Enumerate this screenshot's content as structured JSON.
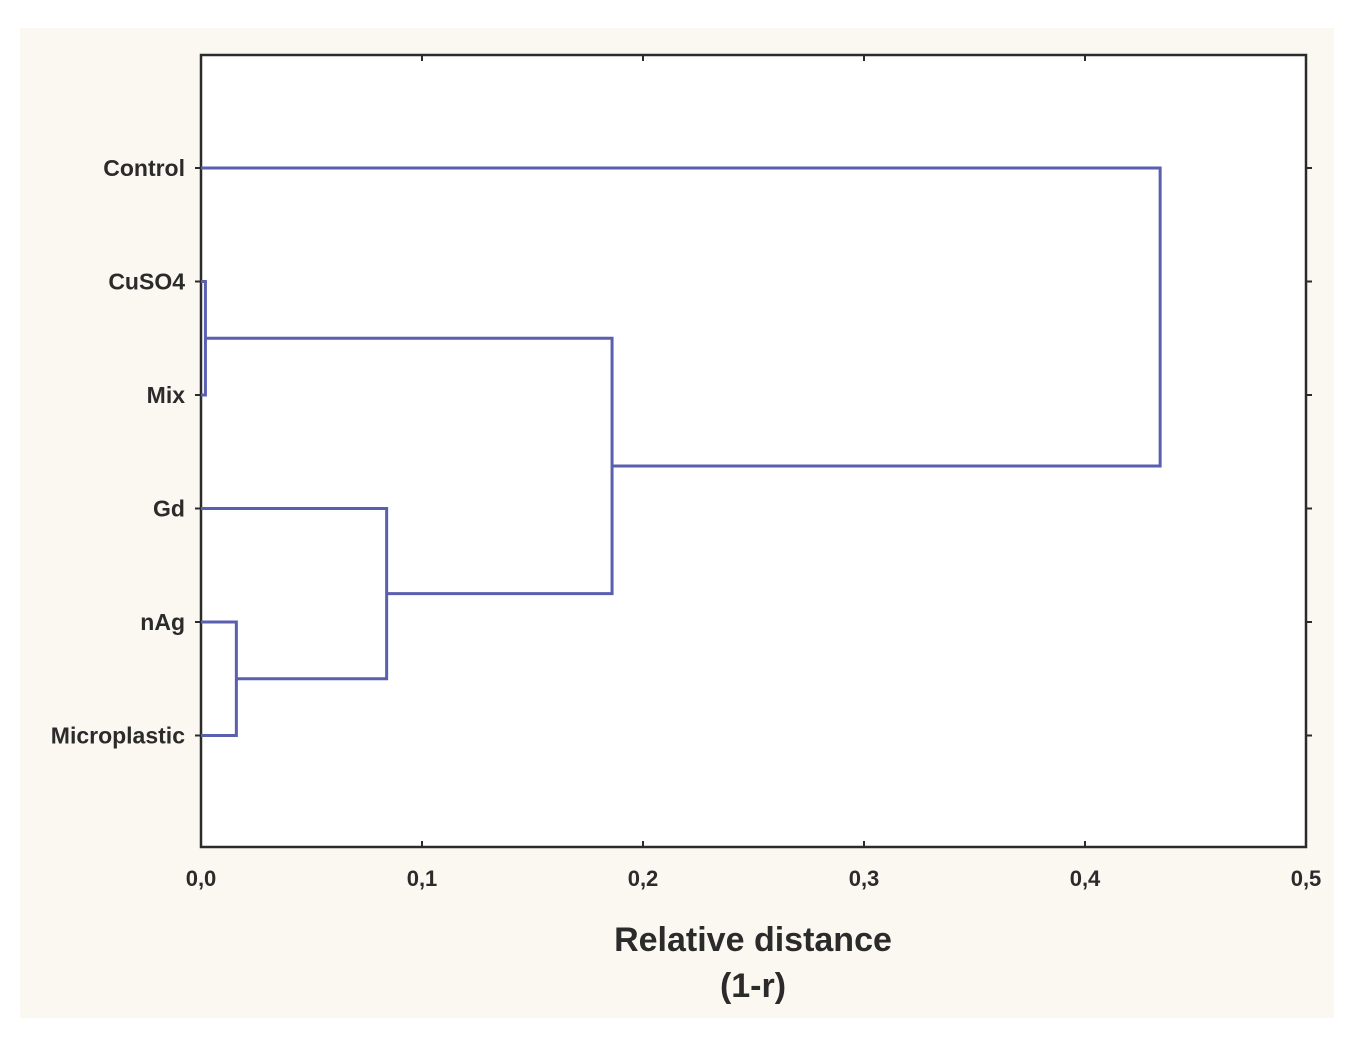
{
  "chart_data": {
    "type": "dendrogram",
    "orientation": "horizontal",
    "xlabel": "Relative distance",
    "xlabel_sub": "(1-r)",
    "xlim": [
      0.0,
      0.5
    ],
    "x_ticks": [
      {
        "value": 0.0,
        "label": "0,0"
      },
      {
        "value": 0.1,
        "label": "0,1"
      },
      {
        "value": 0.2,
        "label": "0,2"
      },
      {
        "value": 0.3,
        "label": "0,3"
      },
      {
        "value": 0.4,
        "label": "0,4"
      },
      {
        "value": 0.5,
        "label": "0,5"
      }
    ],
    "leaves": [
      "Control",
      "CuSO4",
      "Mix",
      "Gd",
      "nAg",
      "Microplastic"
    ],
    "merges": [
      {
        "id": "m1",
        "left": "CuSO4",
        "right": "Mix",
        "height": 0.002
      },
      {
        "id": "m2",
        "left": "nAg",
        "right": "Microplastic",
        "height": 0.016
      },
      {
        "id": "m3",
        "left": "Gd",
        "right": "m2",
        "height": 0.084
      },
      {
        "id": "m4",
        "left": "m1",
        "right": "m3",
        "height": 0.186
      },
      {
        "id": "m5",
        "left": "Control",
        "right": "m4",
        "height": 0.434
      }
    ],
    "line_color": "#5a5fb0",
    "grid": false
  }
}
